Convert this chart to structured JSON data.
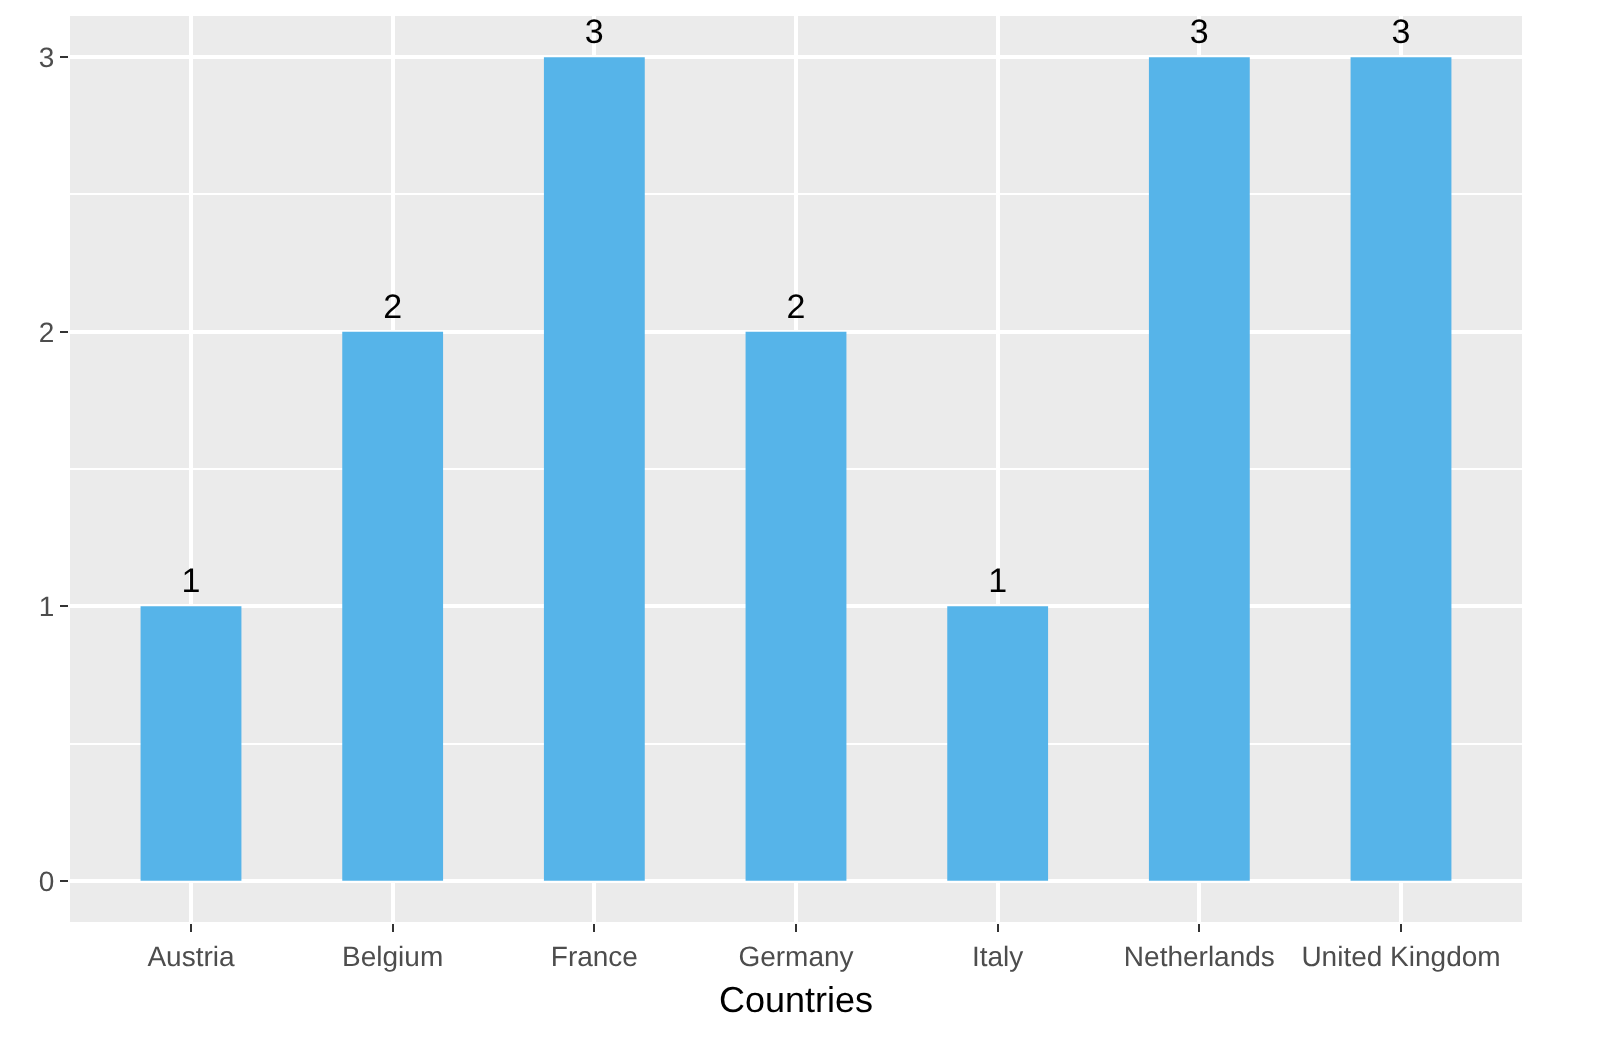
{
  "chart_data": {
    "type": "bar",
    "xlabel": "Countries",
    "categories": [
      "Austria",
      "Belgium",
      "France",
      "Germany",
      "Italy",
      "Netherlands",
      "United Kingdom"
    ],
    "values": [
      1,
      2,
      3,
      2,
      1,
      3,
      3
    ],
    "color": "#56b4e9",
    "ylim": [
      -0.15,
      3.15
    ],
    "yticks": [
      0,
      1,
      2,
      3
    ],
    "grid": true,
    "data_labels": true
  }
}
